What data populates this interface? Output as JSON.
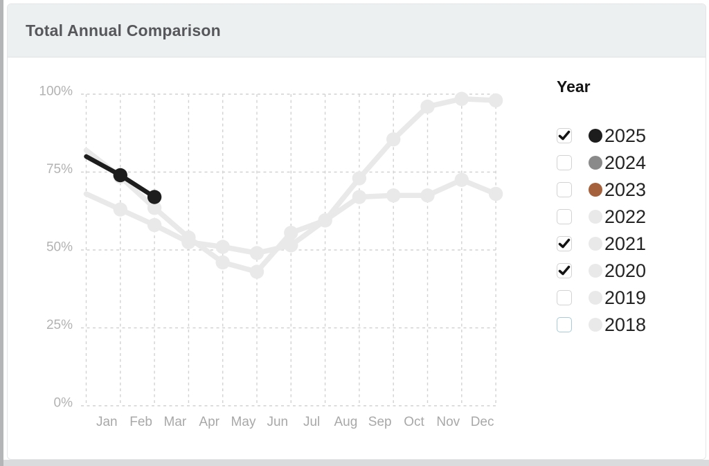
{
  "header": {
    "title": "Total Annual Comparison"
  },
  "legend": {
    "title": "Year",
    "items": [
      {
        "label": "2025",
        "checked": true,
        "focused": false,
        "dot_color": "#1d1d1d"
      },
      {
        "label": "2024",
        "checked": false,
        "focused": false,
        "dot_color": "#8a8a8a"
      },
      {
        "label": "2023",
        "checked": false,
        "focused": false,
        "dot_color": "#a5613c"
      },
      {
        "label": "2022",
        "checked": false,
        "focused": false,
        "dot_color": "#e9e9e9"
      },
      {
        "label": "2021",
        "checked": true,
        "focused": false,
        "dot_color": "#e9e9e9"
      },
      {
        "label": "2020",
        "checked": true,
        "focused": false,
        "dot_color": "#e9e9e9"
      },
      {
        "label": "2019",
        "checked": false,
        "focused": false,
        "dot_color": "#e9e9e9"
      },
      {
        "label": "2018",
        "checked": false,
        "focused": true,
        "dot_color": "#e9e9e9"
      }
    ]
  },
  "chart_data": {
    "type": "line",
    "title": "Total Annual Comparison",
    "categories": [
      "Jan",
      "Feb",
      "Mar",
      "Apr",
      "May",
      "Jun",
      "Jul",
      "Aug",
      "Sep",
      "Oct",
      "Nov",
      "Dec"
    ],
    "y_ticks": [
      "0%",
      "25%",
      "50%",
      "75%",
      "100%"
    ],
    "ylim": [
      0,
      100
    ],
    "grid": true,
    "legend_position": "right",
    "note": "values are percentages; lead_in is the value where each line meets the left plot edge before Jan; only checked years (2025, 2021, 2020) are plotted",
    "series": [
      {
        "name": "2021",
        "color": "#e9e9e9",
        "lead_in": 68,
        "values": [
          63,
          58,
          52.5,
          51,
          49,
          51.5,
          59.5,
          67,
          67.5,
          67.5,
          72.5,
          68
        ]
      },
      {
        "name": "2020",
        "color": "#e9e9e9",
        "lead_in": 82,
        "values": [
          73.5,
          63.5,
          54,
          46,
          43,
          55.5,
          59.5,
          73,
          85.5,
          96,
          98.5,
          98
        ]
      },
      {
        "name": "2025",
        "color": "#1d1d1d",
        "lead_in": 80,
        "values": [
          74,
          67,
          null,
          null,
          null,
          null,
          null,
          null,
          null,
          null,
          null,
          null
        ]
      }
    ],
    "colors": {
      "grid": "#d2d2d2",
      "y_tick_label": "#b2b2b2",
      "x_tick_label": "#a8a8a8"
    }
  }
}
